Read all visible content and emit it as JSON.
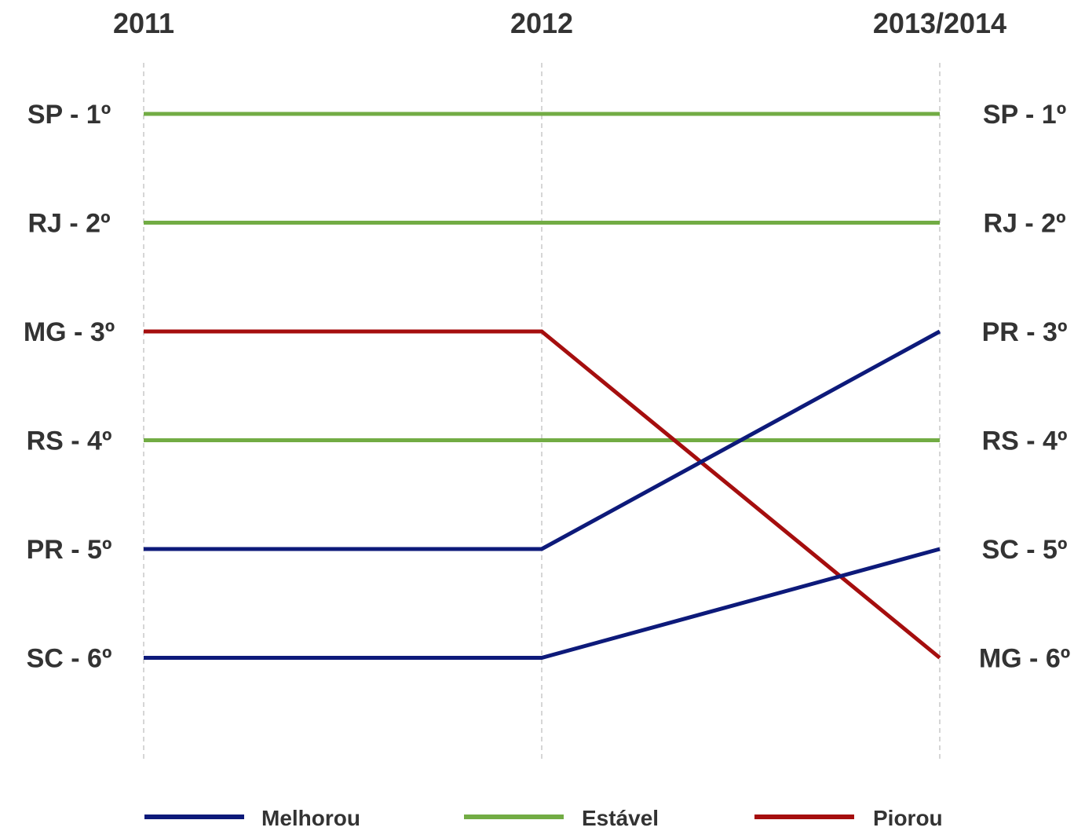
{
  "chart_data": {
    "type": "line",
    "x": [
      "2011",
      "2012",
      "2013/2014"
    ],
    "y_axis": "rank",
    "ylim": [
      1,
      6
    ],
    "y_inverted": true,
    "grid": "vertical-dashed",
    "legend_placement": "bottom",
    "labels_left": [
      "SP - 1º",
      "RJ - 2º",
      "MG - 3º",
      "RS - 4º",
      "PR - 5º",
      "SC - 6º"
    ],
    "labels_right": [
      "SP - 1º",
      "RJ - 2º",
      "PR - 3º",
      "RS - 4º",
      "SC - 5º",
      "MG - 6º"
    ],
    "series": [
      {
        "state": "SP",
        "values": [
          1,
          1,
          1
        ],
        "status": "estavel"
      },
      {
        "state": "RJ",
        "values": [
          2,
          2,
          2
        ],
        "status": "estavel"
      },
      {
        "state": "MG",
        "values": [
          3,
          3,
          6
        ],
        "status": "piorou"
      },
      {
        "state": "RS",
        "values": [
          4,
          4,
          4
        ],
        "status": "estavel"
      },
      {
        "state": "PR",
        "values": [
          5,
          5,
          3
        ],
        "status": "melhorou"
      },
      {
        "state": "SC",
        "values": [
          6,
          6,
          5
        ],
        "status": "melhorou"
      }
    ],
    "legend": [
      {
        "key": "melhorou",
        "label": "Melhorou",
        "color": "#0d1a7a"
      },
      {
        "key": "estavel",
        "label": "Estável",
        "color": "#72ac44"
      },
      {
        "key": "piorou",
        "label": "Piorou",
        "color": "#a50e0e"
      }
    ]
  }
}
